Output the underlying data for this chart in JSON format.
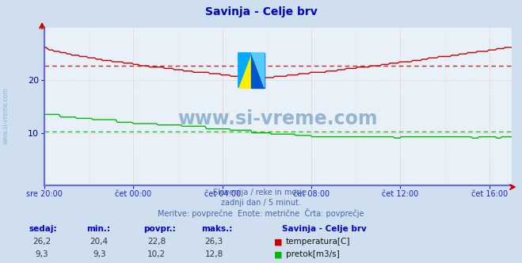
{
  "title": "Savinja - Celje brv",
  "title_color": "#0000cc",
  "bg_color": "#d0dff0",
  "plot_bg_color": "#e8f0f8",
  "x_label_color": "#000099",
  "y_label_color": "#000099",
  "watermark_text": "www.si-vreme.com",
  "watermark_color": "#8ab0d0",
  "subtitle_lines": [
    "Slovenija / reke in morje.",
    "zadnji dan / 5 minut.",
    "Meritve: povprečne  Enote: metrične  Črta: povprečje"
  ],
  "subtitle_color": "#4466aa",
  "footer_label_color": "#0000cc",
  "footer_headers": [
    "sedaj:",
    "min.:",
    "povpr.:",
    "maks.:"
  ],
  "temp_stats": [
    26.2,
    20.4,
    22.8,
    26.3
  ],
  "flow_stats": [
    9.3,
    9.3,
    10.2,
    12.8
  ],
  "legend_title": "Savinja - Celje brv",
  "legend_temp": "temperatura[C]",
  "legend_flow": "pretok[m3/s]",
  "temp_color": "#cc0000",
  "flow_color": "#00bb00",
  "axis_color": "#2222cc",
  "spine_color": "#6666ff",
  "ylim": [
    0,
    30
  ],
  "yticks": [
    10,
    20
  ],
  "xtick_labels": [
    "sre 20:00",
    "čet 00:00",
    "čet 04:00",
    "čet 08:00",
    "čet 12:00",
    "čet 16:00"
  ],
  "temp_avg": 22.8,
  "flow_avg": 10.2,
  "n_points": 289
}
